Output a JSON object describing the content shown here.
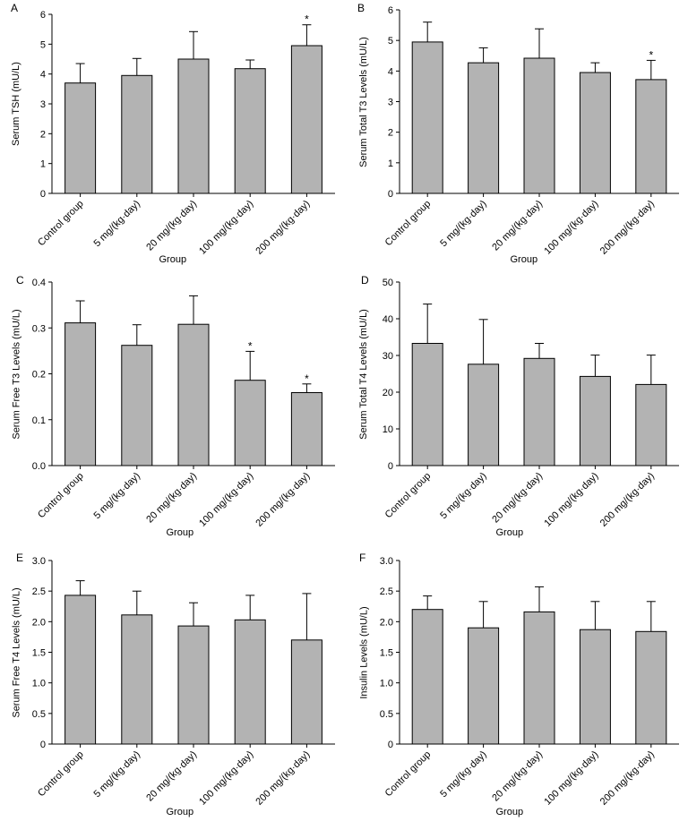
{
  "style": {
    "bar_fill": "#b3b3b3",
    "bar_stroke": "#000000",
    "axis_color": "#000000",
    "background": "#ffffff"
  },
  "chart_data": [
    {
      "id": "A",
      "panel_label": "A",
      "type": "bar",
      "title": "",
      "xlabel": "Group",
      "ylabel": "Serum TSH (mU/L)",
      "categories": [
        "Control group",
        "5 mg/(kg·day)",
        "20 mg/(kg·day)",
        "100 mg/(kg·day)",
        "200 mg/(kg·day)"
      ],
      "values": [
        3.7,
        3.95,
        4.5,
        4.18,
        4.95
      ],
      "error_upper": [
        4.35,
        4.52,
        5.42,
        4.47,
        5.65
      ],
      "significance": [
        "",
        "",
        "",
        "",
        "*"
      ],
      "ylim": [
        0,
        6
      ],
      "yticks": [
        0,
        1,
        2,
        3,
        4,
        5,
        6
      ],
      "ytick_labels": [
        "0",
        "1",
        "2",
        "3",
        "4",
        "5",
        "6"
      ]
    },
    {
      "id": "B",
      "panel_label": "B",
      "type": "bar",
      "title": "",
      "xlabel": "Group",
      "ylabel": "Serum Total T3 Levels (mU/L)",
      "categories": [
        "Control group",
        "5 mg/(kg·day)",
        "20 mg/(kg·day)",
        "100 mg/(kg·day)",
        "200 mg/(kg·day)"
      ],
      "values": [
        4.95,
        4.27,
        4.42,
        3.95,
        3.72
      ],
      "error_upper": [
        5.6,
        4.76,
        5.38,
        4.27,
        4.35
      ],
      "significance": [
        "",
        "",
        "",
        "",
        "*"
      ],
      "ylim": [
        0,
        6
      ],
      "yticks": [
        0,
        1,
        2,
        3,
        4,
        5,
        6
      ],
      "ytick_labels": [
        "0",
        "1",
        "2",
        "3",
        "4",
        "5",
        "6"
      ]
    },
    {
      "id": "C",
      "panel_label": "C",
      "type": "bar",
      "title": "",
      "xlabel": "Group",
      "ylabel": "Serum Free T3 Levels (mU/L)",
      "categories": [
        "Control group",
        "5 mg/(kg·day)",
        "20 mg/(kg·day)",
        "100 mg/(kg·day)",
        "200 mg/(kg·day)"
      ],
      "values": [
        0.311,
        0.262,
        0.308,
        0.186,
        0.159
      ],
      "error_upper": [
        0.359,
        0.307,
        0.37,
        0.249,
        0.178
      ],
      "significance": [
        "",
        "",
        "",
        "*",
        "*"
      ],
      "ylim": [
        0,
        0.4
      ],
      "yticks": [
        0,
        0.1,
        0.2,
        0.3,
        0.4
      ],
      "ytick_labels": [
        "0.0",
        "0.1",
        "0.2",
        "0.3",
        "0.4"
      ]
    },
    {
      "id": "D",
      "panel_label": "D",
      "type": "bar",
      "title": "",
      "xlabel": "Group",
      "ylabel": "Serum Total T4 Levels (mU/L)",
      "categories": [
        "Control group",
        "5 mg/(kg·day)",
        "20 mg/(kg·day)",
        "100 mg/(kg·day)",
        "200 mg/(kg·day)"
      ],
      "values": [
        33.3,
        27.6,
        29.2,
        24.3,
        22.1
      ],
      "error_upper": [
        44.0,
        39.8,
        33.3,
        30.1,
        30.1
      ],
      "significance": [
        "",
        "",
        "",
        "",
        ""
      ],
      "ylim": [
        0,
        50
      ],
      "yticks": [
        0,
        10,
        20,
        30,
        40,
        50
      ],
      "ytick_labels": [
        "0",
        "10",
        "20",
        "30",
        "40",
        "50"
      ]
    },
    {
      "id": "E",
      "panel_label": "E",
      "type": "bar",
      "title": "",
      "xlabel": "Group",
      "ylabel": "Serum Free T4 Levels (mU/L)",
      "categories": [
        "Control group",
        "5 mg/(kg·day)",
        "20 mg/(kg·day)",
        "100 mg/(kg·day)",
        "200 mg/(kg·day)"
      ],
      "values": [
        2.43,
        2.11,
        1.93,
        2.03,
        1.7
      ],
      "error_upper": [
        2.67,
        2.5,
        2.31,
        2.43,
        2.46
      ],
      "significance": [
        "",
        "",
        "",
        "",
        ""
      ],
      "ylim": [
        0,
        3
      ],
      "yticks": [
        0,
        0.5,
        1,
        1.5,
        2,
        2.5,
        3
      ],
      "ytick_labels": [
        "0",
        "0.5",
        "1.0",
        "1.5",
        "2.0",
        "2.5",
        "3.0"
      ]
    },
    {
      "id": "F",
      "panel_label": "F",
      "type": "bar",
      "title": "",
      "xlabel": "Group",
      "ylabel": "Insulin Levels (mU/L)",
      "categories": [
        "Control group",
        "5 mg/(kg·day)",
        "20 mg/(kg·day)",
        "100 mg/(kg·day)",
        "200  mg/(kg·day)"
      ],
      "values": [
        2.2,
        1.9,
        2.16,
        1.87,
        1.84
      ],
      "error_upper": [
        2.42,
        2.33,
        2.57,
        2.33,
        2.33
      ],
      "significance": [
        "",
        "",
        "",
        "",
        ""
      ],
      "ylim": [
        0,
        3
      ],
      "yticks": [
        0,
        0.5,
        1,
        1.5,
        2,
        2.5,
        3
      ],
      "ytick_labels": [
        "0",
        "0.5",
        "1.0",
        "1.5",
        "2.0",
        "2.5",
        "3.0"
      ]
    }
  ]
}
